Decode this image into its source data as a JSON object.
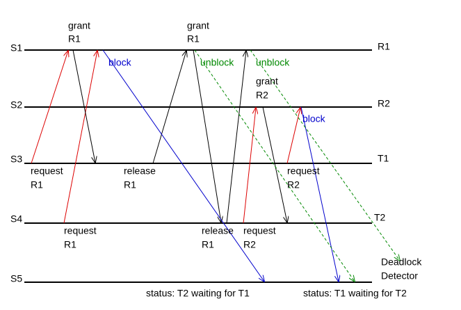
{
  "timelines": [
    {
      "left": "S1",
      "right": "R1"
    },
    {
      "left": "S2",
      "right": "R2"
    },
    {
      "left": "S3",
      "right": "T1"
    },
    {
      "left": "S4",
      "right": "T2"
    },
    {
      "left": "S5",
      "right": [
        "Deadlock",
        "Detector"
      ]
    }
  ],
  "labels": [
    [
      "grant",
      "R1"
    ],
    [
      "grant",
      "R1"
    ],
    [
      "block"
    ],
    [
      "unblock"
    ],
    [
      "unblock"
    ],
    [
      "grant",
      "R2"
    ],
    [
      "block"
    ],
    [
      "request",
      "R1"
    ],
    [
      "release",
      "R1"
    ],
    [
      "request",
      "R2"
    ],
    [
      "request",
      "R1"
    ],
    [
      "release",
      "R1"
    ],
    [
      "request",
      "R2"
    ],
    [
      "status: T2 waiting for T1"
    ],
    [
      "status: T1 waiting for T2"
    ]
  ]
}
